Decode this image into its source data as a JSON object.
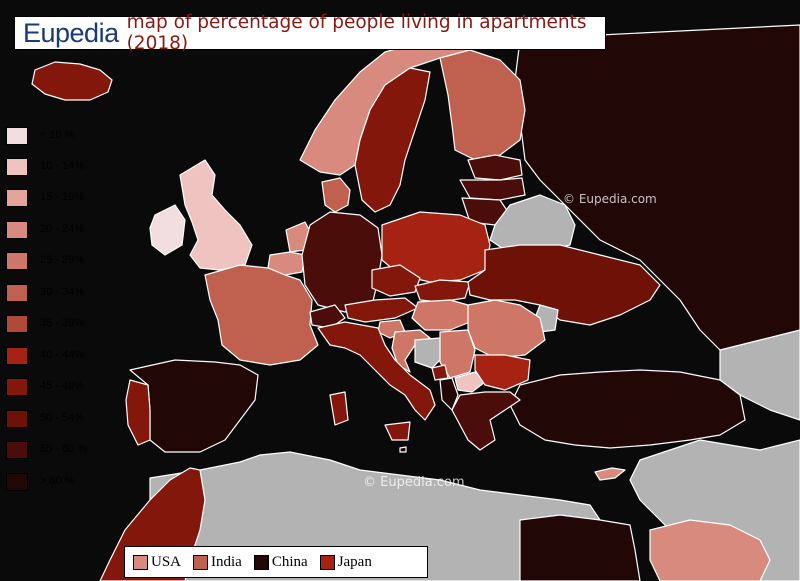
{
  "title": {
    "brand": "Eupedia",
    "text": "map of percentage of people living in apartments (2018)"
  },
  "legend": [
    {
      "label": "< 10 %",
      "color": "#f2dede"
    },
    {
      "label": "10 - 14%",
      "color": "#eec3c0"
    },
    {
      "label": "15 - 19%",
      "color": "#e3a49b"
    },
    {
      "label": "20 - 24%",
      "color": "#d98a7e"
    },
    {
      "label": "25 - 29%",
      "color": "#cf7766"
    },
    {
      "label": "30 - 34%",
      "color": "#c0604e"
    },
    {
      "label": "35 - 39%",
      "color": "#b04936"
    },
    {
      "label": "40 - 44%",
      "color": "#a62313"
    },
    {
      "label": "45 - 49%",
      "color": "#84170b"
    },
    {
      "label": "50 - 54%",
      "color": "#6e1208"
    },
    {
      "label": "55 - 60 %",
      "color": "#4b0d09"
    },
    {
      "label": "> 60 %",
      "color": "#220707"
    }
  ],
  "comparison": [
    {
      "label": "USA",
      "color": "#d98a7e"
    },
    {
      "label": "India",
      "color": "#c0604e"
    },
    {
      "label": "China",
      "color": "#220707"
    },
    {
      "label": "Japan",
      "color": "#a62313"
    }
  ],
  "watermarks": [
    "© Eupedia.com",
    "© Eupedia.com"
  ],
  "colors": {
    "sea": "#0a0a0a",
    "no_data": "#b3b3b3",
    "border": "#ffffff"
  },
  "regions": [
    {
      "name": "Iceland",
      "color": "#84170b"
    },
    {
      "name": "Ireland",
      "color": "#f2dede"
    },
    {
      "name": "United Kingdom",
      "color": "#eec3c0"
    },
    {
      "name": "Norway",
      "color": "#d98a7e"
    },
    {
      "name": "Sweden",
      "color": "#84170b"
    },
    {
      "name": "Finland",
      "color": "#c0604e"
    },
    {
      "name": "Denmark",
      "color": "#c0604e"
    },
    {
      "name": "Netherlands",
      "color": "#d98a7e"
    },
    {
      "name": "Belgium",
      "color": "#d98a7e"
    },
    {
      "name": "France",
      "color": "#c0604e"
    },
    {
      "name": "Germany",
      "color": "#4b0d09"
    },
    {
      "name": "Poland",
      "color": "#a62313"
    },
    {
      "name": "Czechia",
      "color": "#84170b"
    },
    {
      "name": "Slovakia",
      "color": "#84170b"
    },
    {
      "name": "Austria",
      "color": "#84170b"
    },
    {
      "name": "Switzerland",
      "color": "#4b0d09"
    },
    {
      "name": "Italy",
      "color": "#84170b"
    },
    {
      "name": "Spain",
      "color": "#220707"
    },
    {
      "name": "Portugal",
      "color": "#84170b"
    },
    {
      "name": "Hungary",
      "color": "#cf7766"
    },
    {
      "name": "Romania",
      "color": "#cf7766"
    },
    {
      "name": "Bulgaria",
      "color": "#a62313"
    },
    {
      "name": "Greece",
      "color": "#4b0d09"
    },
    {
      "name": "Croatia",
      "color": "#cf7766"
    },
    {
      "name": "Slovenia",
      "color": "#cf7766"
    },
    {
      "name": "Serbia",
      "color": "#cf7766"
    },
    {
      "name": "Bosnia and Herzegovina",
      "color": "#b3b3b3"
    },
    {
      "name": "Montenegro",
      "color": "#84170b"
    },
    {
      "name": "Albania",
      "color": "#220707"
    },
    {
      "name": "North Macedonia",
      "color": "#eec3c0"
    },
    {
      "name": "Moldova",
      "color": "#b3b3b3"
    },
    {
      "name": "Ukraine",
      "color": "#6e1208"
    },
    {
      "name": "Belarus",
      "color": "#b3b3b3"
    },
    {
      "name": "Lithuania",
      "color": "#4b0d09"
    },
    {
      "name": "Latvia",
      "color": "#4b0d09"
    },
    {
      "name": "Estonia",
      "color": "#4b0d09"
    },
    {
      "name": "Russia",
      "color": "#220707"
    },
    {
      "name": "Turkey",
      "color": "#220707"
    },
    {
      "name": "Cyprus",
      "color": "#d98a7e"
    },
    {
      "name": "Morocco",
      "color": "#84170b"
    },
    {
      "name": "North Africa",
      "color": "#b3b3b3"
    },
    {
      "name": "Egypt",
      "color": "#220707"
    },
    {
      "name": "Saudi Arabia",
      "color": "#d98a7e"
    },
    {
      "name": "Caucasus",
      "color": "#b3b3b3"
    },
    {
      "name": "Middle East",
      "color": "#b3b3b3"
    },
    {
      "name": "Malta",
      "color": "#220707"
    }
  ]
}
